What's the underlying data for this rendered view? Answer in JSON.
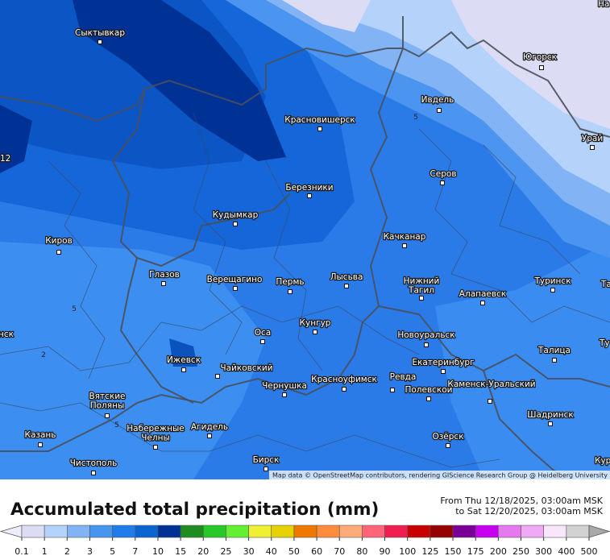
{
  "map": {
    "cities": [
      "Сыктывкар",
      "Югорск",
      "Ивдель",
      "Красновишерск",
      "Урай",
      "Серов",
      "Березники",
      "Кудымкар",
      "Качканар",
      "Киров",
      "Глазов",
      "Верещагино",
      "Пермь",
      "Лысьва",
      "Нижний Тагил",
      "Туринск",
      "Алапаевск",
      "Кунгур",
      "Оса",
      "Новоуральск",
      "Талица",
      "Екатеринбург",
      "Ижевск",
      "Чайковский",
      "Красноуфимск",
      "Ревда",
      "Чернушка",
      "Полевской",
      "Каменск-Уральский",
      "Вятские Поляны",
      "Набережные Челны",
      "Агидель",
      "Казань",
      "Шадринск",
      "Озёрск",
      "Чистополь",
      "Бирск"
    ],
    "partial_labels": [
      "12",
      "нск",
      "Ту",
      "Кур",
      "На",
      "Та"
    ],
    "contour_labels": [
      "5",
      "5",
      "2",
      "5"
    ],
    "attribution": "Map data © OpenStreetMap contributors, rendering GIScience Research Group @ Heidelberg University"
  },
  "title": "Accumulated total precipitation (mm)",
  "period": {
    "from": "From Thu 12/18/2025, 03:00am MSK",
    "to": "to Sat 12/20/2025, 03:00am MSK"
  },
  "legend": {
    "ticks": [
      0.1,
      1,
      2,
      3,
      5,
      7,
      10,
      15,
      20,
      25,
      30,
      40,
      50,
      60,
      70,
      80,
      90,
      100,
      125,
      150,
      175,
      200,
      250,
      300,
      400,
      500
    ],
    "colors": [
      "#dcdcf5",
      "#b4d2fa",
      "#82b4f5",
      "#4696f0",
      "#1e7deb",
      "#0a64d2",
      "#003296",
      "#1e8c1e",
      "#28c828",
      "#64f032",
      "#f0f032",
      "#e6d200",
      "#f07800",
      "#ff8c3c",
      "#ffaa78",
      "#ff6478",
      "#f01e50",
      "#c80000",
      "#960000",
      "#780096",
      "#c800f0",
      "#e678f0",
      "#f0aaf5",
      "#fae6fa",
      "#d2d2d2"
    ],
    "under_color": "#eeeefa",
    "over_color": "#a8a8a8"
  }
}
